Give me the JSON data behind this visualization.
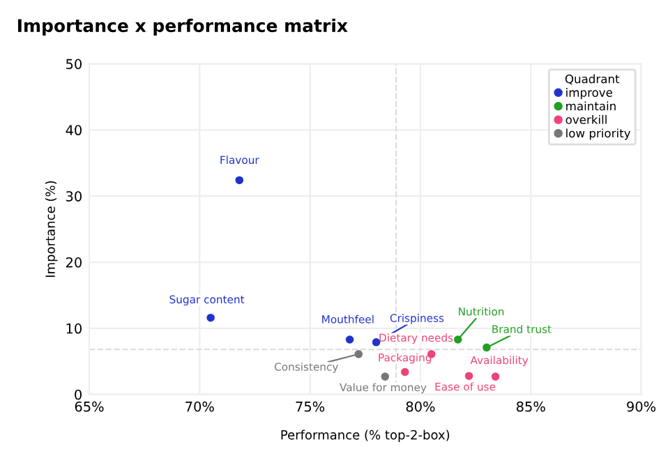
{
  "chart_data": {
    "type": "scatter",
    "title": "Importance x performance matrix",
    "xlabel": "Performance (% top-2-box)",
    "ylabel": "Importance (%)",
    "xlim": [
      65,
      90
    ],
    "xticks": [
      {
        "value": 65,
        "label": "65%"
      },
      {
        "value": 70,
        "label": "70%"
      },
      {
        "value": 75,
        "label": "75%"
      },
      {
        "value": 80,
        "label": "80%"
      },
      {
        "value": 85,
        "label": "85%"
      },
      {
        "value": 90,
        "label": "90%"
      }
    ],
    "ylim": [
      0,
      50
    ],
    "yticks": [
      0,
      10,
      20,
      30,
      40,
      50
    ],
    "grid": true,
    "legend": "top right",
    "legend_title": "Quadrant",
    "marker": "circle",
    "series": [
      {
        "name": "improve",
        "color": "#2233cc",
        "x": [
          71.8,
          70.5,
          76.8,
          78.0
        ],
        "values": [
          32.4,
          11.6,
          8.3,
          7.9
        ]
      },
      {
        "name": "maintain",
        "color": "#22a022",
        "x": [
          81.7,
          83.0
        ],
        "values": [
          8.3,
          7.1
        ]
      },
      {
        "name": "overkill",
        "color": "#ee4477",
        "x": [
          79.3,
          80.5,
          82.2,
          83.4
        ],
        "values": [
          3.4,
          6.1,
          2.8,
          2.7
        ]
      },
      {
        "name": "low priority",
        "color": "#777777",
        "x": [
          77.2,
          78.4
        ],
        "values": [
          6.1,
          2.7
        ]
      }
    ],
    "ref_lines": [
      {
        "axis": "x",
        "value": 78.9,
        "color": "#dddddd",
        "line_style": "dashed"
      },
      {
        "axis": "y",
        "value": 6.8,
        "color": "#dddddd",
        "line_style": "dashed"
      }
    ],
    "annotations": [
      {
        "text": "Flavour",
        "x": 71.8,
        "y": 32.4
      },
      {
        "text": "Sugar content",
        "x": 70.5,
        "y": 11.6
      },
      {
        "text": "Mouthfeel",
        "x": 76.8,
        "y": 8.3
      },
      {
        "text": "Crispiness",
        "x": 78.0,
        "y": 7.9
      },
      {
        "text": "Nutrition",
        "x": 81.7,
        "y": 8.3
      },
      {
        "text": "Brand trust",
        "x": 83.0,
        "y": 7.1
      },
      {
        "text": "Packaging",
        "x": 79.3,
        "y": 3.4
      },
      {
        "text": "Dietary needs",
        "x": 80.5,
        "y": 6.1
      },
      {
        "text": "Ease of use",
        "x": 82.2,
        "y": 2.8
      },
      {
        "text": "Availability",
        "x": 83.4,
        "y": 2.7
      },
      {
        "text": "Consistency",
        "x": 77.2,
        "y": 6.1
      },
      {
        "text": "Value for money",
        "x": 78.4,
        "y": 2.7
      }
    ]
  }
}
